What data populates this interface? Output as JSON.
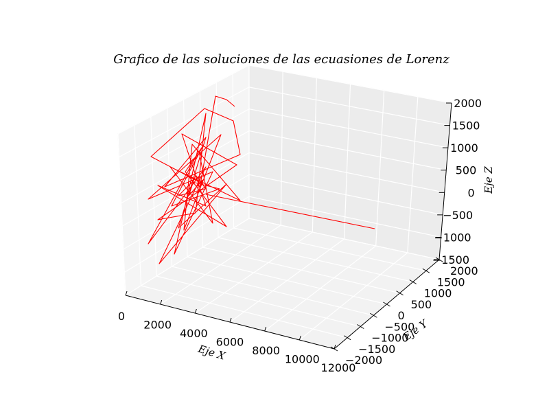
{
  "chart_data": {
    "type": "line",
    "projection": "3d",
    "title": "Grafico de las soluciones de las ecuasiones de Lorenz",
    "xlabel": "Eje X",
    "ylabel": "Eje Y",
    "zlabel": "Eje Z",
    "xlim": [
      0,
      12000
    ],
    "ylim": [
      -2000,
      2000
    ],
    "zlim": [
      -1500,
      2000
    ],
    "x_ticks": [
      "0",
      "2000",
      "4000",
      "6000",
      "8000",
      "10000",
      "12000"
    ],
    "y_ticks": [
      "−2000",
      "−1500",
      "−1000",
      "−500",
      "0",
      "500",
      "1000",
      "1500",
      "2000"
    ],
    "z_ticks": [
      "−1500",
      "−1000",
      "−500",
      "0",
      "500",
      "1000",
      "1500",
      "2000"
    ],
    "grid": true,
    "series": [
      {
        "color": "#ff0000",
        "note_values_estimated": true,
        "x": [
          0,
          200,
          1400,
          2400,
          3400,
          4400,
          5400,
          6400,
          7400,
          8400,
          9400,
          10400,
          11400
        ],
        "y": [
          0,
          10,
          30,
          50,
          70,
          90,
          110,
          130,
          150,
          170,
          190,
          210,
          230
        ],
        "z": [
          0,
          0,
          0,
          0,
          0,
          0,
          0,
          0,
          0,
          0,
          0,
          0,
          0
        ]
      }
    ],
    "chaotic_trace": {
      "color": "#ff0000",
      "points_estimated": [
        [
          296,
          268
        ],
        [
          220,
          228
        ],
        [
          298,
          158
        ],
        [
          340,
          176
        ],
        [
          350,
          225
        ],
        [
          240,
          272
        ],
        [
          300,
          200
        ],
        [
          260,
          332
        ],
        [
          330,
          268
        ],
        [
          232,
          384
        ],
        [
          300,
          243
        ],
        [
          216,
          355
        ],
        [
          290,
          220
        ],
        [
          310,
          325
        ],
        [
          248,
          243
        ],
        [
          350,
          292
        ],
        [
          280,
          210
        ],
        [
          268,
          335
        ],
        [
          322,
          196
        ],
        [
          216,
          290
        ],
        [
          310,
          250
        ],
        [
          254,
          370
        ],
        [
          300,
          165
        ],
        [
          285,
          310
        ],
        [
          230,
          320
        ],
        [
          345,
          240
        ],
        [
          265,
          195
        ],
        [
          300,
          300
        ],
        [
          230,
          270
        ],
        [
          330,
          330
        ],
        [
          270,
          250
        ],
        [
          296,
          212
        ],
        [
          250,
          300
        ],
        [
          320,
          275
        ],
        [
          280,
          265
        ],
        [
          260,
          285
        ],
        [
          300,
          275
        ],
        [
          285,
          255
        ],
        [
          275,
          285
        ],
        [
          295,
          262
        ],
        [
          290,
          280
        ],
        [
          314,
          140
        ],
        [
          330,
          145
        ],
        [
          342,
          155
        ]
      ]
    }
  }
}
